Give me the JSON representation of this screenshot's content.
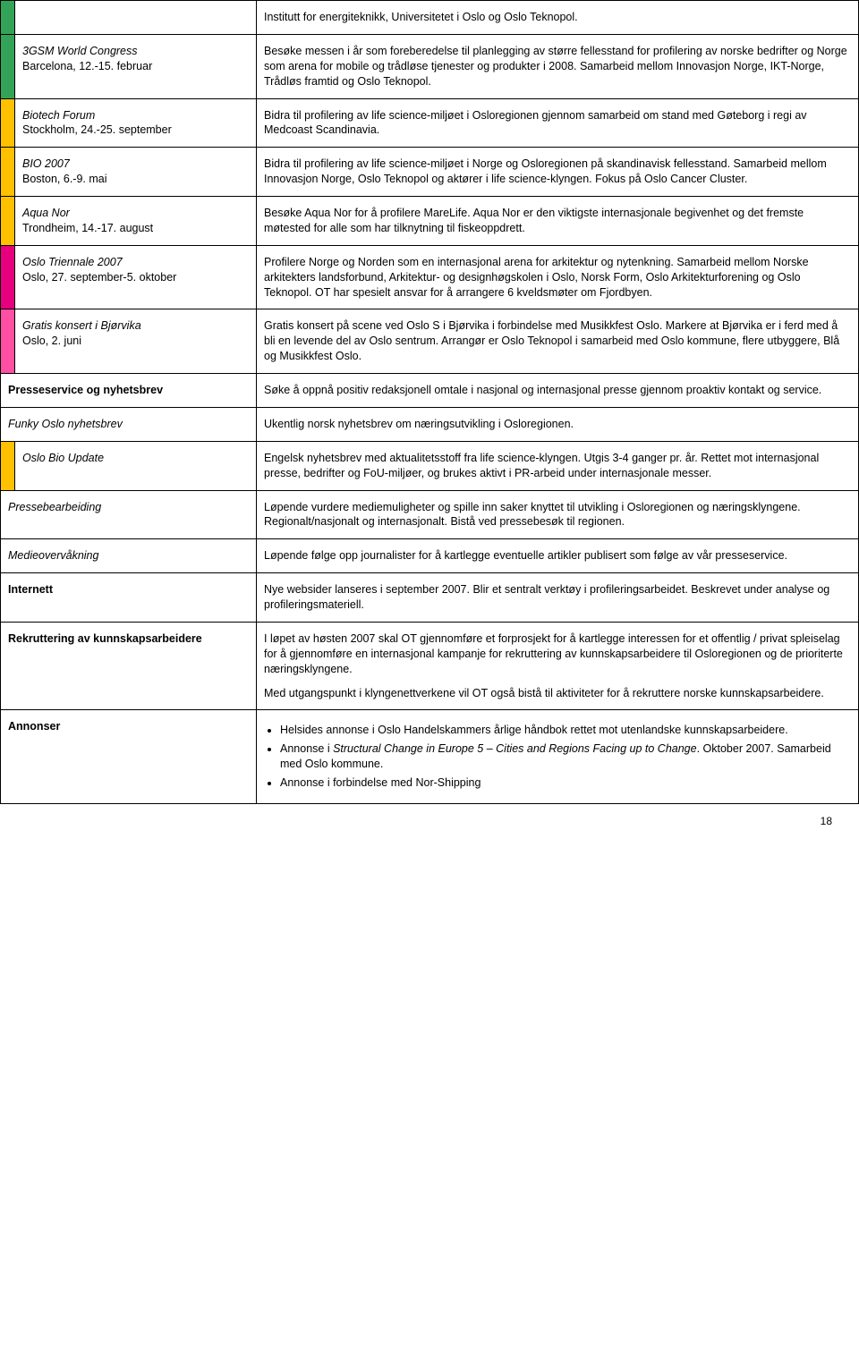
{
  "colors": {
    "green": "#33a457",
    "orange": "#ed7d31",
    "yellow": "#ffc000",
    "red": "#e6007e",
    "magenta": "#ff4fa3"
  },
  "rows": [
    {
      "color": "green",
      "label_italic": "",
      "label_plain": "",
      "desc": "Institutt for energiteknikk, Universitetet i Oslo og Oslo Teknopol."
    },
    {
      "color": "green",
      "label_italic": "3GSM World Congress",
      "label_plain": "Barcelona, 12.-15. februar",
      "desc": "Besøke messen i år som foreberedelse til planlegging av større fellesstand for profilering av norske bedrifter og Norge som arena for mobile og trådløse tjenester og produkter i 2008. Samarbeid mellom Innovasjon Norge, IKT-Norge, Trådløs framtid og Oslo Teknopol."
    },
    {
      "color": "yellow",
      "label_italic": "Biotech Forum",
      "label_plain": "Stockholm, 24.-25. september",
      "desc": "Bidra til profilering av life science-miljøet i Osloregionen gjennom samarbeid om stand med Gøteborg i regi av Medcoast Scandinavia."
    },
    {
      "color": "yellow",
      "label_italic": "BIO 2007",
      "label_plain": "Boston, 6.-9. mai",
      "desc": "Bidra til profilering av life science-miljøet i Norge og Osloregionen på skandinavisk fellesstand. Samarbeid mellom Innovasjon Norge, Oslo Teknopol og aktører i life science-klyngen. Fokus på Oslo Cancer Cluster."
    },
    {
      "color": "yellow",
      "label_italic": "Aqua Nor",
      "label_plain": "Trondheim, 14.-17. august",
      "desc": "Besøke Aqua Nor for å profilere MareLife. Aqua Nor er den viktigste internasjonale begivenhet og det fremste møtested for alle som har tilknytning til fiskeoppdrett."
    },
    {
      "color": "red",
      "label_italic": "Oslo Triennale 2007",
      "label_plain": "Oslo, 27. september-5. oktober",
      "desc": "Profilere Norge og Norden som en internasjonal arena for arkitektur og nytenkning. Samarbeid mellom Norske arkitekters landsforbund, Arkitektur- og designhøgskolen i Oslo, Norsk Form, Oslo Arkitekturforening og Oslo Teknopol. OT har spesielt ansvar for å arrangere 6 kveldsmøter om Fjordbyen."
    },
    {
      "color": "magenta",
      "label_italic": "Gratis konsert i Bjørvika",
      "label_plain": "Oslo, 2. juni",
      "desc": "Gratis konsert på scene ved Oslo S i Bjørvika i forbindelse med Musikkfest Oslo. Markere at Bjørvika er i ferd med å bli en levende del av Oslo sentrum. Arrangør er Oslo Teknopol i samarbeid med Oslo kommune, flere utbyggere, Blå og Musikkfest Oslo."
    }
  ],
  "section_rows": [
    {
      "label": "Presseservice og nyhetsbrev",
      "bold": true,
      "italic": false,
      "color": "",
      "desc": "Søke å oppnå positiv redaksjonell omtale i nasjonal og internasjonal presse gjennom proaktiv kontakt og service."
    },
    {
      "label": "Funky Oslo nyhetsbrev",
      "bold": false,
      "italic": true,
      "color": "",
      "desc": "Ukentlig norsk nyhetsbrev om næringsutvikling i Osloregionen."
    },
    {
      "label": "Oslo Bio Update",
      "bold": false,
      "italic": true,
      "color": "yellow",
      "desc": "Engelsk nyhetsbrev med aktualitetsstoff fra life science-klyngen. Utgis 3-4 ganger pr. år. Rettet mot internasjonal presse, bedrifter og FoU-miljøer, og brukes aktivt i PR-arbeid under internasjonale messer."
    },
    {
      "label": "Pressebearbeiding",
      "bold": false,
      "italic": true,
      "color": "",
      "desc": "Løpende vurdere mediemuligheter og spille inn saker knyttet til utvikling i Osloregionen og næringsklyngene. Regionalt/nasjonalt og internasjonalt. Bistå ved pressebesøk til regionen."
    },
    {
      "label": "Medieovervåkning",
      "bold": false,
      "italic": true,
      "color": "",
      "desc": "Løpende følge opp journalister for å kartlegge eventuelle artikler publisert som følge av vår presseservice."
    },
    {
      "label": "Internett",
      "bold": true,
      "italic": false,
      "color": "",
      "desc": "Nye websider lanseres i september 2007. Blir et sentralt verktøy i profileringsarbeidet. Beskrevet under analyse og profileringsmateriell."
    }
  ],
  "rekruttering": {
    "label": "Rekruttering av kunnskapsarbeidere",
    "desc1": "I løpet av høsten 2007 skal OT gjennomføre et forprosjekt for å kartlegge interessen for et offentlig / privat spleiselag for å gjennomføre en internasjonal kampanje for rekruttering av kunnskapsarbeidere til Osloregionen og de prioriterte næringsklyngene.",
    "desc2": "Med utgangspunkt i klyngenettverkene vil OT også bistå til aktiviteter for å rekruttere norske kunnskapsarbeidere."
  },
  "annonser": {
    "label": "Annonser",
    "bullets": [
      "Helsides annonse i Oslo Handelskammers årlige håndbok rettet mot utenlandske kunnskapsarbeidere.",
      "Annonse i Structural Change in Europe 5 – Cities and Regions Facing up to Change. Oktober 2007. Samarbeid med Oslo kommune.",
      "Annonse i forbindelse med Nor-Shipping"
    ],
    "bullet2_italic_part": "Structural Change in Europe 5 – Cities and Regions Facing up to Change",
    "bullet2_prefix": "Annonse i ",
    "bullet2_suffix": ". Oktober 2007. Samarbeid med Oslo kommune."
  },
  "page_number": "18"
}
